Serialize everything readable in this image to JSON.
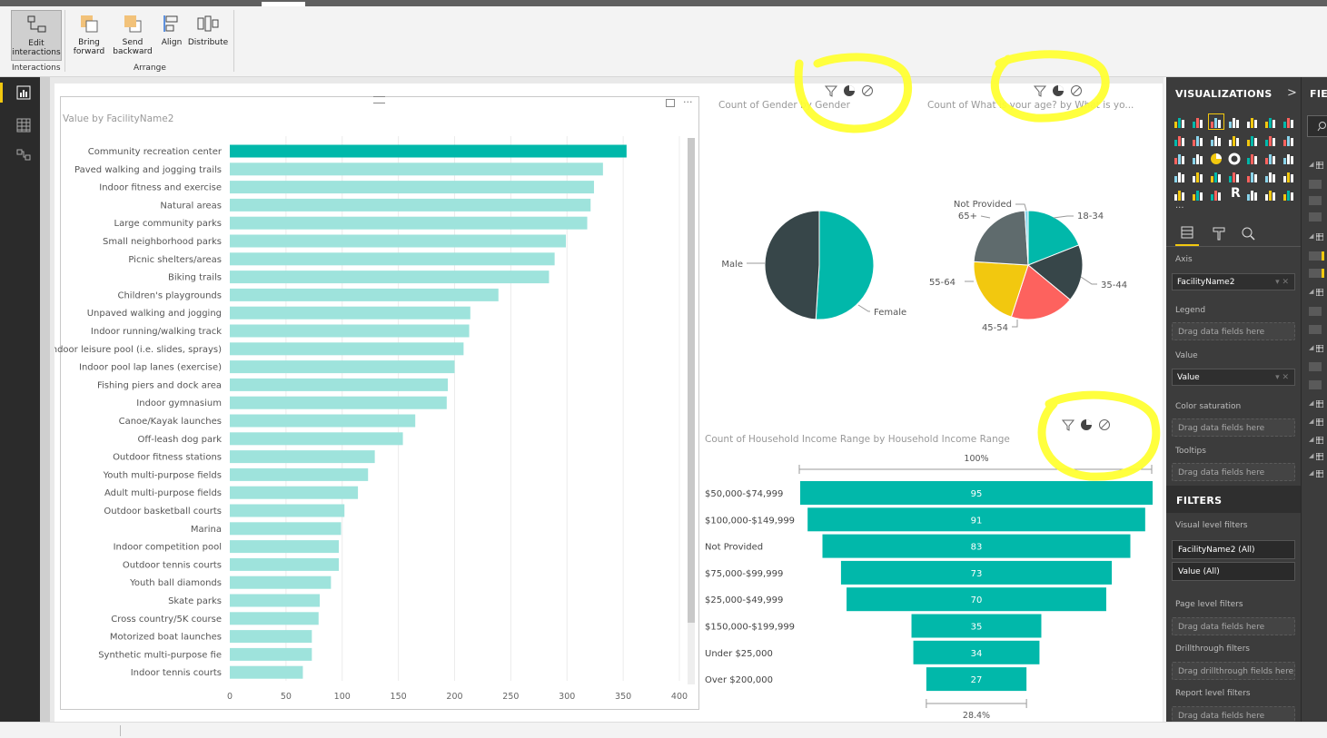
{
  "ribbon": {
    "edit_interactions": "Edit interactions",
    "bring_forward": "Bring forward",
    "send_backward": "Send backward",
    "align": "Align",
    "distribute": "Distribute",
    "group_interactions": "Interactions",
    "group_arrange": "Arrange"
  },
  "colors": {
    "teal": "#01b8aa",
    "teal_light": "#9ee3dc",
    "dark": "#374649",
    "gray": "#5f6b6d",
    "coral": "#fd625e",
    "yellow": "#f2c80f",
    "highlight": "#ffff33"
  },
  "bar_visual": {
    "title": "Value by FacilityName2",
    "chart_data": {
      "type": "bar",
      "orientation": "horizontal",
      "categories": [
        "Community recreation center",
        "Paved walking and jogging trails",
        "Indoor fitness and exercise",
        "Natural areas",
        "Large community parks",
        "Small neighborhood parks",
        "Picnic shelters/areas",
        "Biking trails",
        "Children's playgrounds",
        "Unpaved walking and jogging",
        "Indoor running/walking track",
        "Indoor leisure pool (i.e. slides, sprays)",
        "Indoor pool lap lanes (exercise)",
        "Fishing piers and dock area",
        "Indoor gymnasium",
        "Canoe/Kayak launches",
        "Off-leash dog park",
        "Outdoor fitness stations",
        "Youth multi-purpose fields",
        "Adult multi-purpose fields",
        "Outdoor basketball courts",
        "Marina",
        "Indoor competition pool",
        "Outdoor tennis courts",
        "Youth ball diamonds",
        "Skate parks",
        "Cross country/5K course",
        "Motorized boat launches",
        "Synthetic multi-purpose fie",
        "Indoor tennis courts"
      ],
      "values": [
        353,
        332,
        324,
        321,
        318,
        299,
        289,
        284,
        239,
        214,
        213,
        208,
        200,
        194,
        193,
        165,
        154,
        129,
        123,
        114,
        102,
        99,
        97,
        97,
        90,
        80,
        79,
        73,
        73,
        65
      ],
      "xlim": [
        0,
        400
      ],
      "xticks": [
        0,
        50,
        100,
        150,
        200,
        250,
        300,
        350,
        400
      ],
      "highlighted_index": 0,
      "grid": true
    }
  },
  "gender_visual": {
    "title": "Count of Gender by Gender",
    "chart_data": {
      "type": "pie",
      "labels": [
        "Female",
        "Male"
      ],
      "values": [
        51,
        49
      ],
      "colors": [
        "#01b8aa",
        "#374649"
      ]
    }
  },
  "age_visual": {
    "title": "Count of What is your age? by What is yo...",
    "chart_data": {
      "type": "pie",
      "labels": [
        "18-34",
        "35-44",
        "45-54",
        "55-64",
        "65+",
        "Not Provided"
      ],
      "values": [
        19,
        17,
        19,
        21,
        23,
        1
      ],
      "colors": [
        "#01b8aa",
        "#374649",
        "#fd625e",
        "#f2c80f",
        "#5f6b6d",
        "#8ad4eb"
      ]
    }
  },
  "funnel_visual": {
    "title": "Count of Household Income Range by Household Income Range",
    "top_label": "100%",
    "bottom_label": "28.4%",
    "chart_data": {
      "type": "funnel",
      "categories": [
        "$50,000-$74,999",
        "$100,000-$149,999",
        "Not Provided",
        "$75,000-$99,999",
        "$25,000-$49,999",
        "$150,000-$199,999",
        "Under $25,000",
        "Over $200,000"
      ],
      "values": [
        95,
        91,
        83,
        73,
        70,
        35,
        34,
        27
      ]
    }
  },
  "viz_pane": {
    "title": "VISUALIZATIONS",
    "chevron": ">",
    "more": "...",
    "axis_label": "Axis",
    "axis_field": "FacilityName2",
    "legend_label": "Legend",
    "value_label": "Value",
    "value_field": "Value",
    "color_sat_label": "Color saturation",
    "tooltips_label": "Tooltips",
    "drag_here": "Drag data fields here",
    "filters_title": "FILTERS",
    "visual_filters_label": "Visual level filters",
    "filter1": "FacilityName2 (All)",
    "filter2": "Value (All)",
    "page_filters_label": "Page level filters",
    "drillthrough_label": "Drillthrough filters",
    "drag_drillthrough": "Drag drillthrough fields here",
    "report_filters_label": "Report level filters",
    "r_letter": "R"
  },
  "fields_pane": {
    "title": "FIE"
  }
}
